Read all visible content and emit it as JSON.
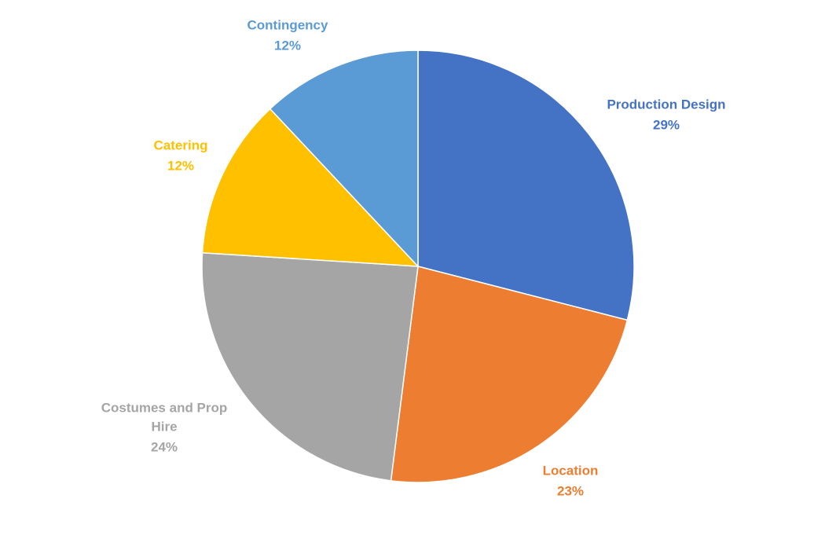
{
  "chart_data": {
    "type": "pie",
    "title": "",
    "start_angle_deg": 0,
    "direction": "clockwise",
    "slices": [
      {
        "label": "Production Design",
        "percent_label": "29%",
        "value": 29,
        "color": "#4472C4"
      },
      {
        "label": "Location",
        "percent_label": "23%",
        "value": 23,
        "color": "#ED7D31"
      },
      {
        "label": "Costumes and Prop Hire",
        "percent_label": "24%",
        "value": 24,
        "color": "#A5A5A5"
      },
      {
        "label": "Catering",
        "percent_label": "12%",
        "value": 12,
        "color": "#FFC000"
      },
      {
        "label": "Contingency",
        "percent_label": "12%",
        "value": 12,
        "color": "#5B9BD5"
      }
    ],
    "legend": "none",
    "data_labels": "outside"
  }
}
